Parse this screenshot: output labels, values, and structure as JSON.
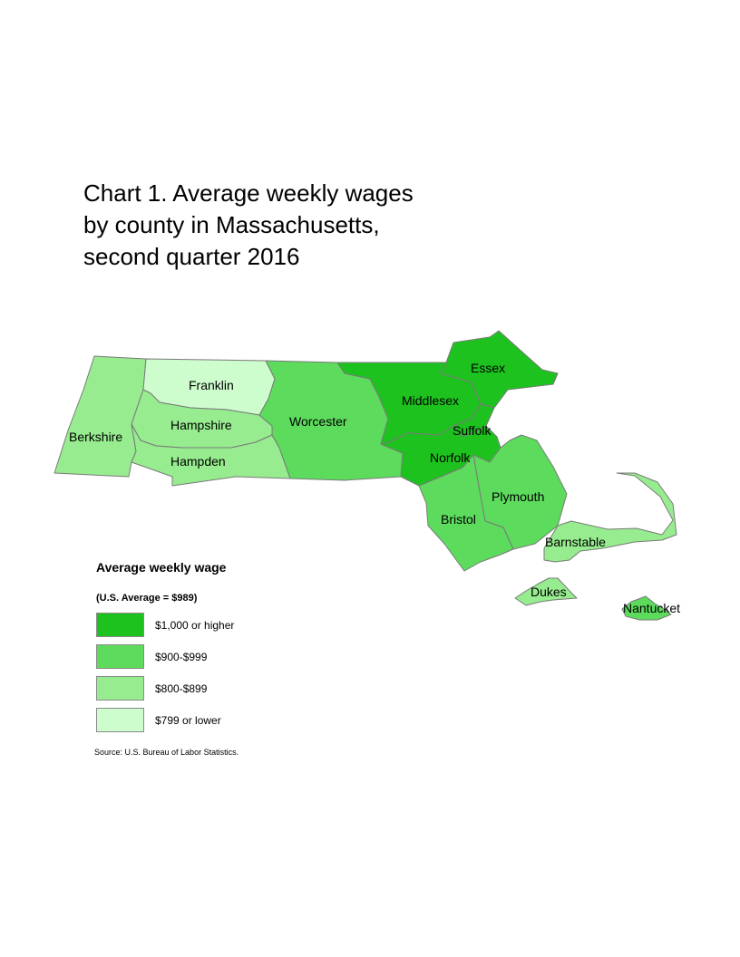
{
  "title": {
    "line1": "Chart 1. Average weekly wages",
    "line2": "by county in Massachusetts,",
    "line3": "second quarter 2016"
  },
  "legend": {
    "title": "Average weekly wage",
    "note": "(U.S. Average = $989)",
    "classes": [
      {
        "label": "$1,000 or higher",
        "color": "#1ec21e"
      },
      {
        "label": "$900-$999",
        "color": "#5cdb5c"
      },
      {
        "label": "$800-$899",
        "color": "#96ec8e"
      },
      {
        "label": "$799 or lower",
        "color": "#cdfccd"
      }
    ]
  },
  "source": "Source: U.S. Bureau of Labor Statistics.",
  "counties": [
    {
      "name": "Berkshire",
      "wage_class": "$800-$899"
    },
    {
      "name": "Franklin",
      "wage_class": "$799 or lower"
    },
    {
      "name": "Hampshire",
      "wage_class": "$800-$899"
    },
    {
      "name": "Hampden",
      "wage_class": "$800-$899"
    },
    {
      "name": "Worcester",
      "wage_class": "$900-$999"
    },
    {
      "name": "Middlesex",
      "wage_class": "$1,000 or higher"
    },
    {
      "name": "Essex",
      "wage_class": "$1,000 or higher"
    },
    {
      "name": "Suffolk",
      "wage_class": "$1,000 or higher"
    },
    {
      "name": "Norfolk",
      "wage_class": "$1,000 or higher"
    },
    {
      "name": "Plymouth",
      "wage_class": "$900-$999"
    },
    {
      "name": "Bristol",
      "wage_class": "$900-$999"
    },
    {
      "name": "Barnstable",
      "wage_class": "$800-$899"
    },
    {
      "name": "Dukes",
      "wage_class": "$800-$899"
    },
    {
      "name": "Nantucket",
      "wage_class": "$900-$999"
    }
  ]
}
